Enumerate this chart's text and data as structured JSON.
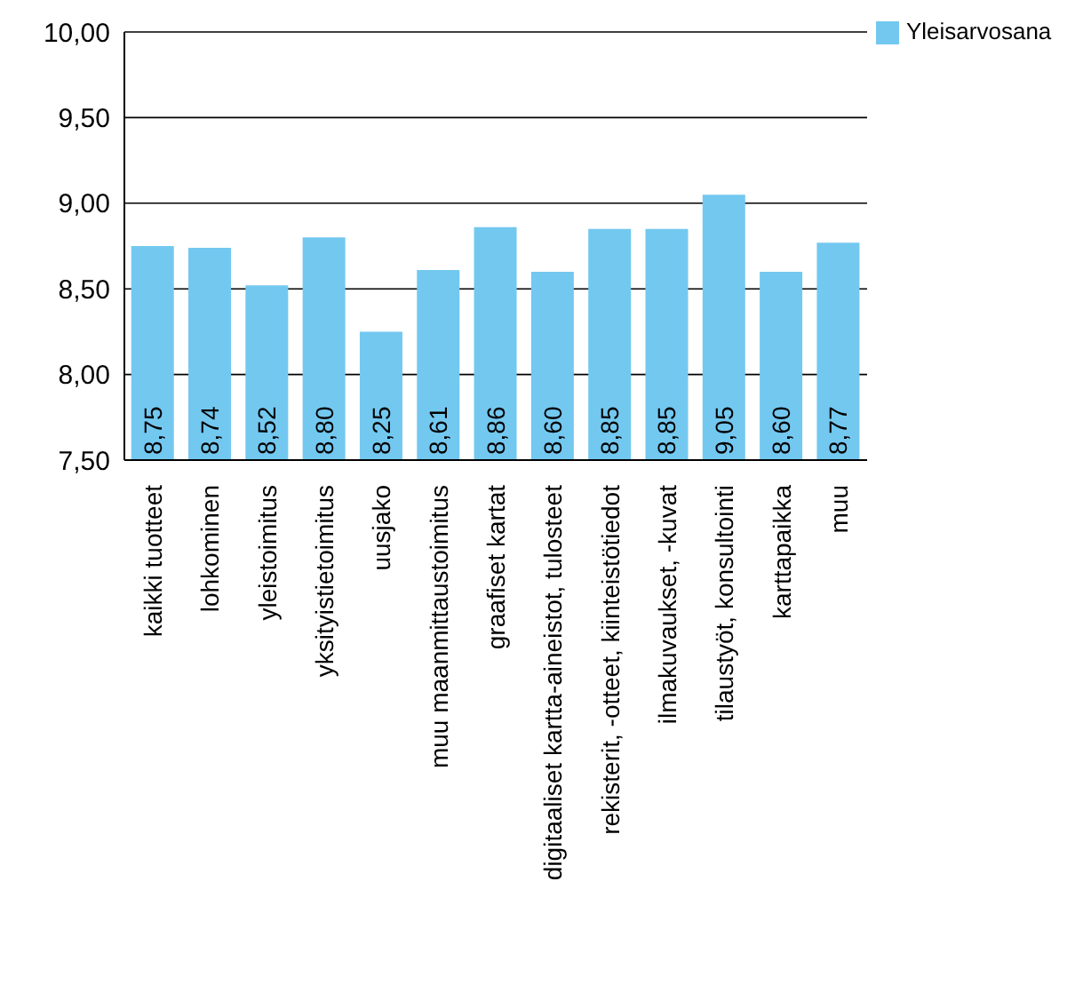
{
  "chart_data": {
    "type": "bar",
    "categories": [
      "kaikki tuotteet",
      "lohkominen",
      "yleistoimitus",
      "yksityistietoimitus",
      "uusjako",
      "muu  maanmittaustoimitus",
      "graafiset kartat",
      "digitaaliset kartta-aineistot, tulosteet",
      "rekisterit, -otteet, kiinteistötiedot",
      "ilmakuvaukset, -kuvat",
      "tilaustyöt, konsultointi",
      "karttapaikka",
      "muu"
    ],
    "series": [
      {
        "name": "Yleisarvosana",
        "color": "#73c8f0",
        "values": [
          8.75,
          8.74,
          8.52,
          8.8,
          8.25,
          8.61,
          8.86,
          8.6,
          8.85,
          8.85,
          9.05,
          8.6,
          8.77
        ],
        "value_labels": [
          "8,75",
          "8,74",
          "8,52",
          "8,80",
          "8,25",
          "8,61",
          "8,86",
          "8,60",
          "8,85",
          "8,85",
          "9,05",
          "8,60",
          "8,77"
        ]
      }
    ],
    "ylim": [
      7.5,
      10
    ],
    "yticks": [
      {
        "value": 7.5,
        "label": "7,50"
      },
      {
        "value": 8,
        "label": "8,00"
      },
      {
        "value": 8.5,
        "label": "8,50"
      },
      {
        "value": 9,
        "label": "9,00"
      },
      {
        "value": 9.5,
        "label": "9,50"
      },
      {
        "value": 10,
        "label": "10,00"
      }
    ],
    "grid": "y",
    "legend": "top right"
  }
}
